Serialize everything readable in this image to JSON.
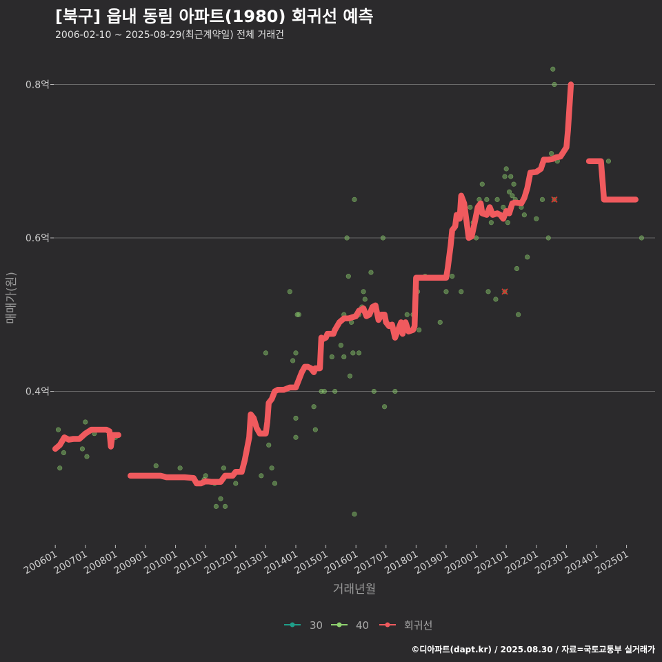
{
  "title": "[북구] 읍내 동림 아파트(1980) 회귀선 예측",
  "subtitle": "2006-02-10 ~ 2025-08-29(최근계약일) 전체 거래건",
  "footer": "©디아파트(dapt.kr) / 2025.08.30 / 자료=국토교통부 실거래가",
  "colors": {
    "background": "#2b2a2c",
    "grid": "#6a6a6a",
    "series_30": "#1f9e89",
    "series_40": "#8fd16f",
    "regression": "#f05a5e",
    "highlight": "#d9362f"
  },
  "chart_data": {
    "type": "scatter",
    "xlabel": "거래년월",
    "ylabel": "매매가(원)",
    "xlim": [
      2005.95,
      2025.95
    ],
    "ylim": [
      0.2,
      0.84
    ],
    "x_ticks": [
      {
        "value": 2006.0,
        "label": "200601"
      },
      {
        "value": 2007.0,
        "label": "200701"
      },
      {
        "value": 2008.0,
        "label": "200801"
      },
      {
        "value": 2009.0,
        "label": "200901"
      },
      {
        "value": 2010.0,
        "label": "201001"
      },
      {
        "value": 2011.0,
        "label": "201101"
      },
      {
        "value": 2012.0,
        "label": "201201"
      },
      {
        "value": 2013.0,
        "label": "201301"
      },
      {
        "value": 2014.0,
        "label": "201401"
      },
      {
        "value": 2015.0,
        "label": "201501"
      },
      {
        "value": 2016.0,
        "label": "201601"
      },
      {
        "value": 2017.0,
        "label": "201701"
      },
      {
        "value": 2018.0,
        "label": "201801"
      },
      {
        "value": 2019.0,
        "label": "201901"
      },
      {
        "value": 2020.0,
        "label": "202001"
      },
      {
        "value": 2021.0,
        "label": "202101"
      },
      {
        "value": 2022.0,
        "label": "202201"
      },
      {
        "value": 2023.0,
        "label": "202301"
      },
      {
        "value": 2024.0,
        "label": "202401"
      },
      {
        "value": 2025.0,
        "label": "202501"
      }
    ],
    "y_ticks": [
      {
        "value": 0.4,
        "label": "0.4억"
      },
      {
        "value": 0.6,
        "label": "0.6억"
      },
      {
        "value": 0.8,
        "label": "0.8억"
      }
    ],
    "legend": [
      {
        "name": "30",
        "color": "#1f9e89"
      },
      {
        "name": "40",
        "color": "#8fd16f"
      },
      {
        "name": "회귀선",
        "color": "#f05a5e"
      }
    ],
    "series": [
      {
        "name": "40",
        "points": [
          [
            2006.1,
            0.35
          ],
          [
            2006.12,
            0.33
          ],
          [
            2006.15,
            0.3
          ],
          [
            2006.28,
            0.32
          ],
          [
            2006.9,
            0.325
          ],
          [
            2007.0,
            0.36
          ],
          [
            2007.05,
            0.315
          ],
          [
            2007.3,
            0.345
          ],
          [
            2008.0,
            0.34
          ],
          [
            2009.3,
            0.29
          ],
          [
            2009.35,
            0.303
          ],
          [
            2010.15,
            0.3
          ],
          [
            2010.8,
            0.28
          ],
          [
            2010.95,
            0.285
          ],
          [
            2011.0,
            0.29
          ],
          [
            2011.3,
            0.28
          ],
          [
            2011.35,
            0.25
          ],
          [
            2011.5,
            0.26
          ],
          [
            2011.6,
            0.3
          ],
          [
            2011.65,
            0.25
          ],
          [
            2012.0,
            0.28
          ],
          [
            2012.85,
            0.29
          ],
          [
            2013.0,
            0.45
          ],
          [
            2013.1,
            0.33
          ],
          [
            2013.2,
            0.3
          ],
          [
            2013.3,
            0.28
          ],
          [
            2013.8,
            0.53
          ],
          [
            2013.9,
            0.44
          ],
          [
            2014.0,
            0.45
          ],
          [
            2014.0,
            0.365
          ],
          [
            2014.05,
            0.5
          ],
          [
            2014.1,
            0.5
          ],
          [
            2014.0,
            0.34
          ],
          [
            2014.6,
            0.38
          ],
          [
            2014.65,
            0.35
          ],
          [
            2014.95,
            0.4
          ],
          [
            2015.3,
            0.4
          ],
          [
            2015.2,
            0.445
          ],
          [
            2015.5,
            0.46
          ],
          [
            2015.6,
            0.445
          ],
          [
            2015.7,
            0.6
          ],
          [
            2015.75,
            0.55
          ],
          [
            2015.8,
            0.42
          ],
          [
            2015.85,
            0.49
          ],
          [
            2015.9,
            0.45
          ],
          [
            2015.95,
            0.65
          ],
          [
            2016.0,
            0.5
          ],
          [
            2016.1,
            0.45
          ],
          [
            2016.2,
            0.51
          ],
          [
            2016.25,
            0.53
          ],
          [
            2016.3,
            0.52
          ],
          [
            2016.4,
            0.5
          ],
          [
            2016.5,
            0.555
          ],
          [
            2016.6,
            0.4
          ],
          [
            2016.8,
            0.5
          ],
          [
            2016.9,
            0.6
          ],
          [
            2016.95,
            0.38
          ],
          [
            2017.3,
            0.4
          ],
          [
            2017.7,
            0.5
          ],
          [
            2017.9,
            0.5
          ],
          [
            2018.05,
            0.53
          ],
          [
            2018.1,
            0.48
          ],
          [
            2018.3,
            0.55
          ],
          [
            2018.8,
            0.49
          ],
          [
            2019.0,
            0.53
          ],
          [
            2019.2,
            0.55
          ],
          [
            2019.6,
            0.64
          ],
          [
            2019.8,
            0.64
          ],
          [
            2019.9,
            0.62
          ],
          [
            2020.0,
            0.6
          ],
          [
            2020.1,
            0.65
          ],
          [
            2020.2,
            0.67
          ],
          [
            2020.35,
            0.65
          ],
          [
            2020.5,
            0.62
          ],
          [
            2020.7,
            0.65
          ],
          [
            2020.9,
            0.64
          ],
          [
            2020.95,
            0.68
          ],
          [
            2021.0,
            0.69
          ],
          [
            2021.05,
            0.62
          ],
          [
            2021.1,
            0.66
          ],
          [
            2021.15,
            0.68
          ],
          [
            2021.2,
            0.655
          ],
          [
            2021.25,
            0.67
          ],
          [
            2021.3,
            0.65
          ],
          [
            2021.5,
            0.64
          ],
          [
            2021.6,
            0.63
          ],
          [
            2021.7,
            0.575
          ],
          [
            2022.0,
            0.625
          ],
          [
            2022.2,
            0.65
          ],
          [
            2022.4,
            0.6
          ],
          [
            2022.5,
            0.71
          ],
          [
            2022.55,
            0.82
          ],
          [
            2022.6,
            0.8
          ],
          [
            2022.7,
            0.7
          ],
          [
            2023.9,
            0.7
          ],
          [
            2024.4,
            0.7
          ],
          [
            2025.5,
            0.6
          ],
          [
            2019.5,
            0.53
          ],
          [
            2020.4,
            0.53
          ],
          [
            2020.65,
            0.52
          ],
          [
            2021.35,
            0.56
          ],
          [
            2021.4,
            0.5
          ],
          [
            2016.1,
            0.5
          ],
          [
            2015.6,
            0.5
          ],
          [
            2014.85,
            0.4
          ],
          [
            2015.95,
            0.24
          ]
        ]
      },
      {
        "name": "회귀선",
        "segments": [
          [
            [
              2006.0,
              0.325
            ],
            [
              2006.15,
              0.33
            ],
            [
              2006.3,
              0.34
            ],
            [
              2006.45,
              0.337
            ],
            [
              2006.6,
              0.338
            ],
            [
              2006.8,
              0.338
            ],
            [
              2007.0,
              0.345
            ],
            [
              2007.2,
              0.35
            ],
            [
              2007.5,
              0.35
            ],
            [
              2007.7,
              0.35
            ],
            [
              2007.8,
              0.348
            ],
            [
              2007.85,
              0.328
            ],
            [
              2007.9,
              0.343
            ],
            [
              2008.0,
              0.343
            ],
            [
              2008.1,
              0.343
            ]
          ],
          [
            [
              2008.5,
              0.29
            ],
            [
              2009.0,
              0.29
            ],
            [
              2009.5,
              0.29
            ],
            [
              2009.7,
              0.288
            ],
            [
              2010.0,
              0.288
            ],
            [
              2010.3,
              0.288
            ],
            [
              2010.6,
              0.287
            ],
            [
              2010.7,
              0.28
            ],
            [
              2010.85,
              0.28
            ],
            [
              2011.0,
              0.283
            ],
            [
              2011.2,
              0.282
            ],
            [
              2011.5,
              0.282
            ],
            [
              2011.65,
              0.29
            ],
            [
              2011.9,
              0.29
            ],
            [
              2012.0,
              0.295
            ],
            [
              2012.2,
              0.295
            ],
            [
              2012.3,
              0.31
            ],
            [
              2012.45,
              0.34
            ],
            [
              2012.5,
              0.37
            ],
            [
              2012.6,
              0.365
            ],
            [
              2012.7,
              0.352
            ],
            [
              2012.8,
              0.345
            ],
            [
              2012.9,
              0.345
            ],
            [
              2013.0,
              0.345
            ],
            [
              2013.05,
              0.36
            ],
            [
              2013.1,
              0.385
            ],
            [
              2013.2,
              0.39
            ],
            [
              2013.3,
              0.4
            ],
            [
              2013.4,
              0.402
            ],
            [
              2013.6,
              0.402
            ],
            [
              2013.8,
              0.405
            ],
            [
              2014.0,
              0.405
            ],
            [
              2014.1,
              0.415
            ],
            [
              2014.2,
              0.425
            ],
            [
              2014.3,
              0.432
            ],
            [
              2014.4,
              0.432
            ],
            [
              2014.5,
              0.43
            ],
            [
              2014.6,
              0.425
            ],
            [
              2014.65,
              0.43
            ],
            [
              2014.8,
              0.43
            ],
            [
              2014.85,
              0.47
            ],
            [
              2014.9,
              0.468
            ],
            [
              2015.0,
              0.47
            ],
            [
              2015.05,
              0.475
            ],
            [
              2015.15,
              0.475
            ],
            [
              2015.25,
              0.475
            ],
            [
              2015.3,
              0.48
            ],
            [
              2015.45,
              0.49
            ],
            [
              2015.6,
              0.495
            ],
            [
              2015.75,
              0.495
            ],
            [
              2016.0,
              0.498
            ],
            [
              2016.1,
              0.505
            ],
            [
              2016.25,
              0.508
            ],
            [
              2016.35,
              0.498
            ],
            [
              2016.45,
              0.5
            ],
            [
              2016.55,
              0.51
            ],
            [
              2016.65,
              0.512
            ],
            [
              2016.75,
              0.493
            ],
            [
              2016.85,
              0.5
            ],
            [
              2016.95,
              0.5
            ],
            [
              2017.0,
              0.49
            ],
            [
              2017.1,
              0.485
            ],
            [
              2017.2,
              0.487
            ],
            [
              2017.3,
              0.47
            ],
            [
              2017.4,
              0.48
            ],
            [
              2017.5,
              0.49
            ],
            [
              2017.55,
              0.475
            ],
            [
              2017.65,
              0.49
            ],
            [
              2017.75,
              0.478
            ],
            [
              2017.9,
              0.48
            ],
            [
              2017.95,
              0.485
            ],
            [
              2018.0,
              0.548
            ],
            [
              2018.2,
              0.548
            ],
            [
              2018.5,
              0.548
            ],
            [
              2018.8,
              0.548
            ],
            [
              2019.0,
              0.548
            ],
            [
              2019.05,
              0.56
            ],
            [
              2019.15,
              0.59
            ],
            [
              2019.2,
              0.61
            ],
            [
              2019.3,
              0.615
            ],
            [
              2019.35,
              0.63
            ],
            [
              2019.45,
              0.625
            ],
            [
              2019.5,
              0.655
            ],
            [
              2019.6,
              0.645
            ],
            [
              2019.7,
              0.615
            ],
            [
              2019.75,
              0.6
            ],
            [
              2019.85,
              0.602
            ],
            [
              2019.95,
              0.62
            ],
            [
              2020.05,
              0.64
            ],
            [
              2020.15,
              0.645
            ],
            [
              2020.2,
              0.632
            ],
            [
              2020.35,
              0.63
            ],
            [
              2020.45,
              0.64
            ],
            [
              2020.55,
              0.63
            ],
            [
              2020.7,
              0.632
            ],
            [
              2020.8,
              0.63
            ],
            [
              2020.9,
              0.625
            ],
            [
              2021.0,
              0.635
            ],
            [
              2021.1,
              0.632
            ],
            [
              2021.2,
              0.645
            ],
            [
              2021.3,
              0.646
            ],
            [
              2021.5,
              0.645
            ],
            [
              2021.6,
              0.652
            ],
            [
              2021.7,
              0.665
            ],
            [
              2021.8,
              0.685
            ],
            [
              2022.0,
              0.686
            ],
            [
              2022.15,
              0.69
            ],
            [
              2022.25,
              0.702
            ],
            [
              2022.4,
              0.702
            ],
            [
              2022.55,
              0.703
            ],
            [
              2022.65,
              0.705
            ],
            [
              2022.8,
              0.706
            ],
            [
              2022.9,
              0.712
            ],
            [
              2023.0,
              0.718
            ],
            [
              2023.05,
              0.74
            ],
            [
              2023.15,
              0.8
            ]
          ],
          [
            [
              2023.75,
              0.7
            ],
            [
              2024.15,
              0.7
            ],
            [
              2024.25,
              0.65
            ],
            [
              2024.6,
              0.65
            ],
            [
              2024.9,
              0.65
            ],
            [
              2025.3,
              0.65
            ]
          ]
        ]
      }
    ],
    "highlights": [
      [
        2020.95,
        0.53
      ],
      [
        2022.6,
        0.65
      ]
    ]
  }
}
